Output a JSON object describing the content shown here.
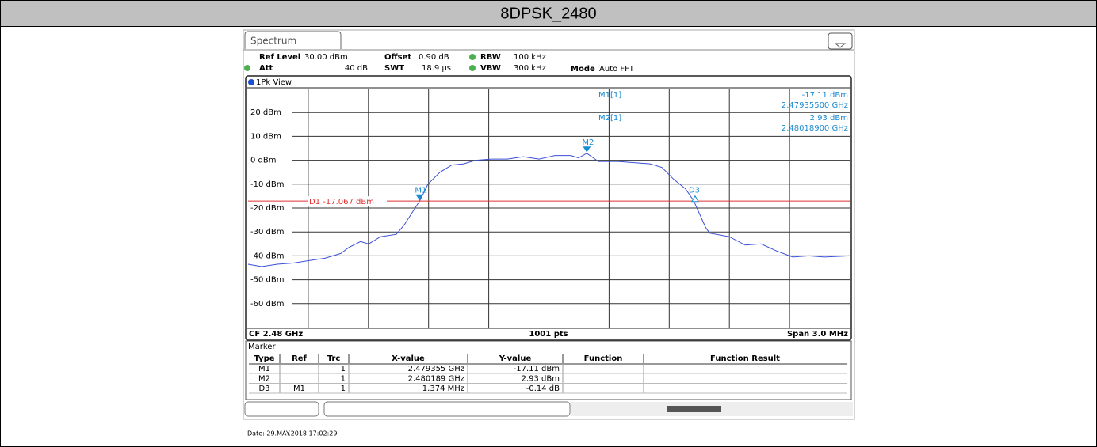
{
  "page_title": "8DPSK_2480",
  "ui": {
    "tab": "Spectrum",
    "settings": {
      "ref_level_label": "Ref Level",
      "ref_level": "30.00 dBm",
      "offset_label": "Offset",
      "offset": "0.90 dB",
      "rbw_label": "RBW",
      "rbw": "100 kHz",
      "att_label": "Att",
      "att": "40 dB",
      "swt_label": "SWT",
      "swt": "18.9 µs",
      "vbw_label": "VBW",
      "vbw": "300 kHz",
      "mode_label": "Mode",
      "mode": "Auto FFT"
    },
    "view": "1Pk View",
    "readout": {
      "m1_name": "M1[1]",
      "m1_level": "-17.11 dBm",
      "m1_freq": "2.47935500 GHz",
      "m2_name": "M2[1]",
      "m2_level": "2.93 dBm",
      "m2_freq": "2.48018900 GHz"
    },
    "footer": {
      "cf": "CF 2.48 GHz",
      "pts": "1001 pts",
      "span": "Span 3.0 MHz"
    },
    "marker_table": {
      "title": "Marker",
      "headers": [
        "Type",
        "Ref",
        "Trc",
        "X-value",
        "Y-value",
        "Function",
        "Function Result"
      ],
      "rows": [
        {
          "type": "M1",
          "trc": "1",
          "x": "2.479355 GHz",
          "y": "-17.11 dBm"
        },
        {
          "type": "M2",
          "trc": "1",
          "x": "2.480189 GHz",
          "y": "2.93 dBm"
        },
        {
          "type": "D3",
          "ref": "M1",
          "trc": "1",
          "x": "1.374 MHz",
          "y": "-0.14 dB"
        }
      ]
    },
    "date": "Date: 29.MAY.2018  17:02:29"
  },
  "chart_data": {
    "type": "line",
    "color": "#3a4fd8",
    "x": [
      2.4785,
      2.478567,
      2.478646,
      2.478725,
      2.478804,
      2.478883,
      2.478962,
      2.479002,
      2.479061,
      2.479101,
      2.47916,
      2.479239,
      2.479279,
      2.479355,
      2.479397,
      2.479457,
      2.479516,
      2.479575,
      2.479635,
      2.479714,
      2.479793,
      2.479872,
      2.479951,
      2.48003,
      2.480109,
      2.480148,
      2.480189,
      2.480247,
      2.480346,
      2.480425,
      2.480504,
      2.480564,
      2.480623,
      2.480682,
      2.480722,
      2.480781,
      2.480801,
      2.4809,
      2.480979,
      2.481058,
      2.481137,
      2.481216,
      2.481295,
      2.481374,
      2.4815
    ],
    "values": [
      -43.5,
      -44.5,
      -43.5,
      -43,
      -42,
      -41,
      -39,
      -36.5,
      -34,
      -35,
      -32,
      -31,
      -27,
      -17.11,
      -10,
      -5,
      -2,
      -1.5,
      0,
      0.5,
      0.5,
      1.5,
      0.5,
      2,
      2,
      1,
      2.93,
      -0.5,
      -0.5,
      -1,
      -1.5,
      -3,
      -8,
      -12,
      -17,
      -28,
      -30.5,
      -32,
      -35.5,
      -35,
      -38,
      -40.5,
      -40,
      -40.5,
      -40
    ],
    "xlim": [
      2.4785,
      2.4815
    ],
    "ylim": [
      -70,
      30
    ],
    "yticks": [
      {
        "value": 20,
        "label": "20 dBm"
      },
      {
        "value": 10,
        "label": "10 dBm"
      },
      {
        "value": 0,
        "label": "0 dBm"
      },
      {
        "value": -10,
        "label": "-10 dBm"
      },
      {
        "value": -20,
        "label": "-20 dBm"
      },
      {
        "value": -30,
        "label": "-30 dBm"
      },
      {
        "value": -40,
        "label": "-40 dBm"
      },
      {
        "value": -50,
        "label": "-50 dBm"
      },
      {
        "value": -60,
        "label": "-60 dBm"
      }
    ],
    "grid": true,
    "display_line": {
      "label": "D1 -17.067 dBm",
      "value": -17.067,
      "color": "#e03030"
    },
    "markers": [
      {
        "name": "M1",
        "x": 2.479355,
        "y": -17.11
      },
      {
        "name": "M2",
        "x": 2.480189,
        "y": 2.93
      },
      {
        "name": "D3",
        "x": 2.480729,
        "y": -17.25
      }
    ]
  }
}
